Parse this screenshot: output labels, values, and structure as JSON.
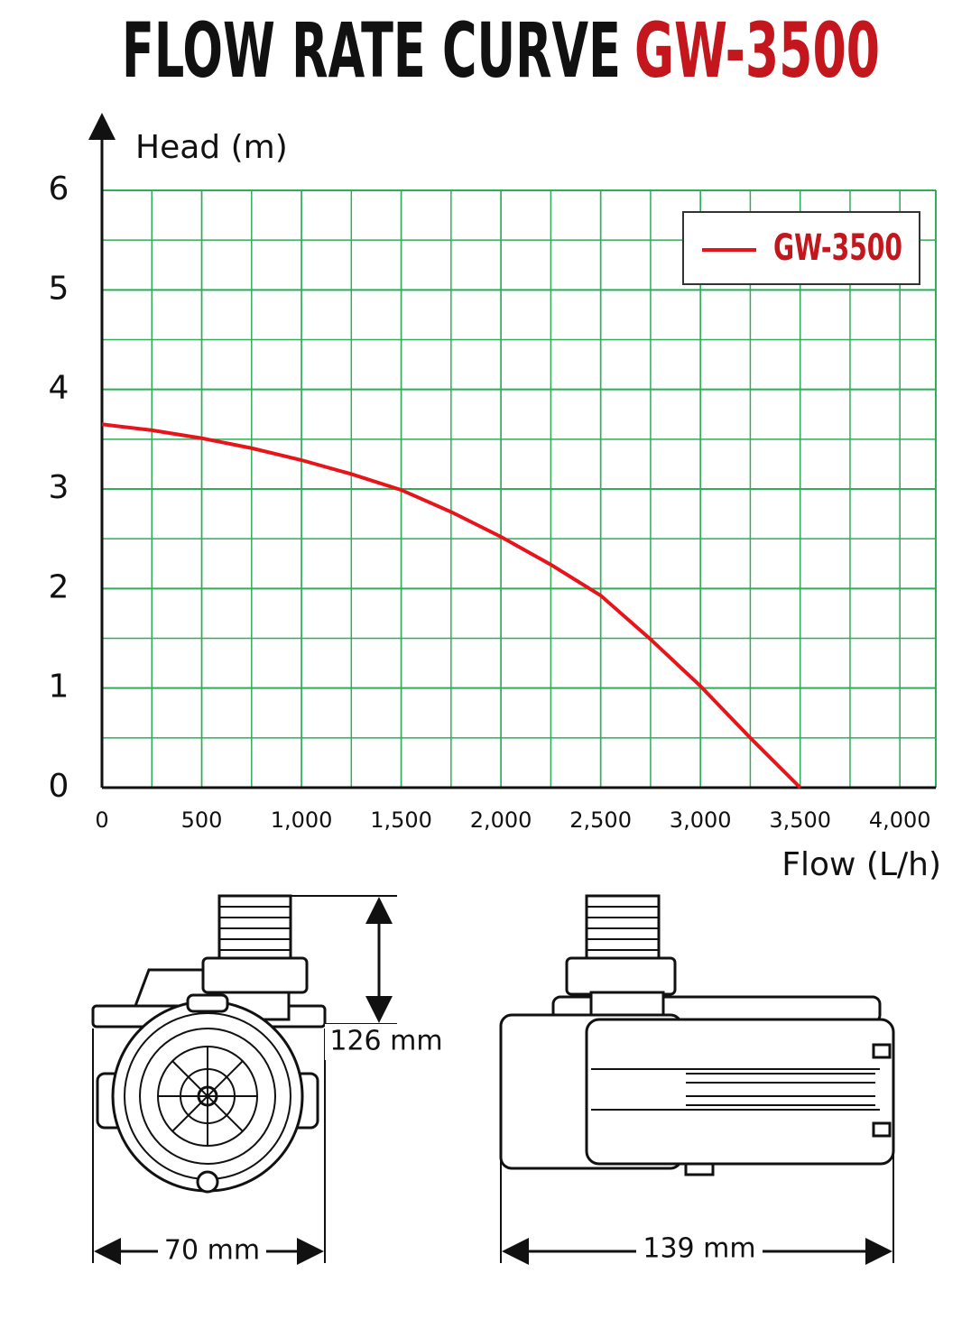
{
  "chart_data": {
    "type": "line",
    "title": "FLOW RATE CURVE",
    "title_highlight": "GW-3500",
    "x_label": "Flow (L/h)",
    "y_label": "Head (m)",
    "x": [
      0,
      250,
      500,
      750,
      1000,
      1250,
      1500,
      1750,
      2000,
      2250,
      2500,
      2750,
      3000,
      3250,
      3500
    ],
    "series": [
      {
        "name": "GW-3500",
        "color": "#e8141b",
        "values": [
          3.65,
          3.59,
          3.51,
          3.41,
          3.29,
          3.15,
          2.99,
          2.77,
          2.52,
          2.24,
          1.93,
          1.49,
          1.02,
          0.5,
          0
        ]
      }
    ],
    "xlim": [
      0,
      4180
    ],
    "ylim": [
      0,
      6
    ],
    "xticks": [
      0,
      500,
      {
        "value": 1000,
        "label": "1,000"
      },
      {
        "value": 1500,
        "label": "1,500"
      },
      {
        "value": 2000,
        "label": "2,000"
      },
      {
        "value": 2500,
        "label": "2,500"
      },
      {
        "value": 3000,
        "label": "3,000"
      },
      {
        "value": 3500,
        "label": "3,500"
      },
      {
        "value": 4000,
        "label": "4,000"
      }
    ],
    "yticks": [
      0,
      1,
      2,
      3,
      4,
      5,
      6
    ],
    "grid": true,
    "grid_color": "#2fae5a",
    "x_grid_step": 250,
    "y_grid_step": 0.5,
    "legend": "upper right"
  },
  "dimensions": {
    "height": "126 mm",
    "width": "70 mm",
    "length": "139 mm"
  }
}
